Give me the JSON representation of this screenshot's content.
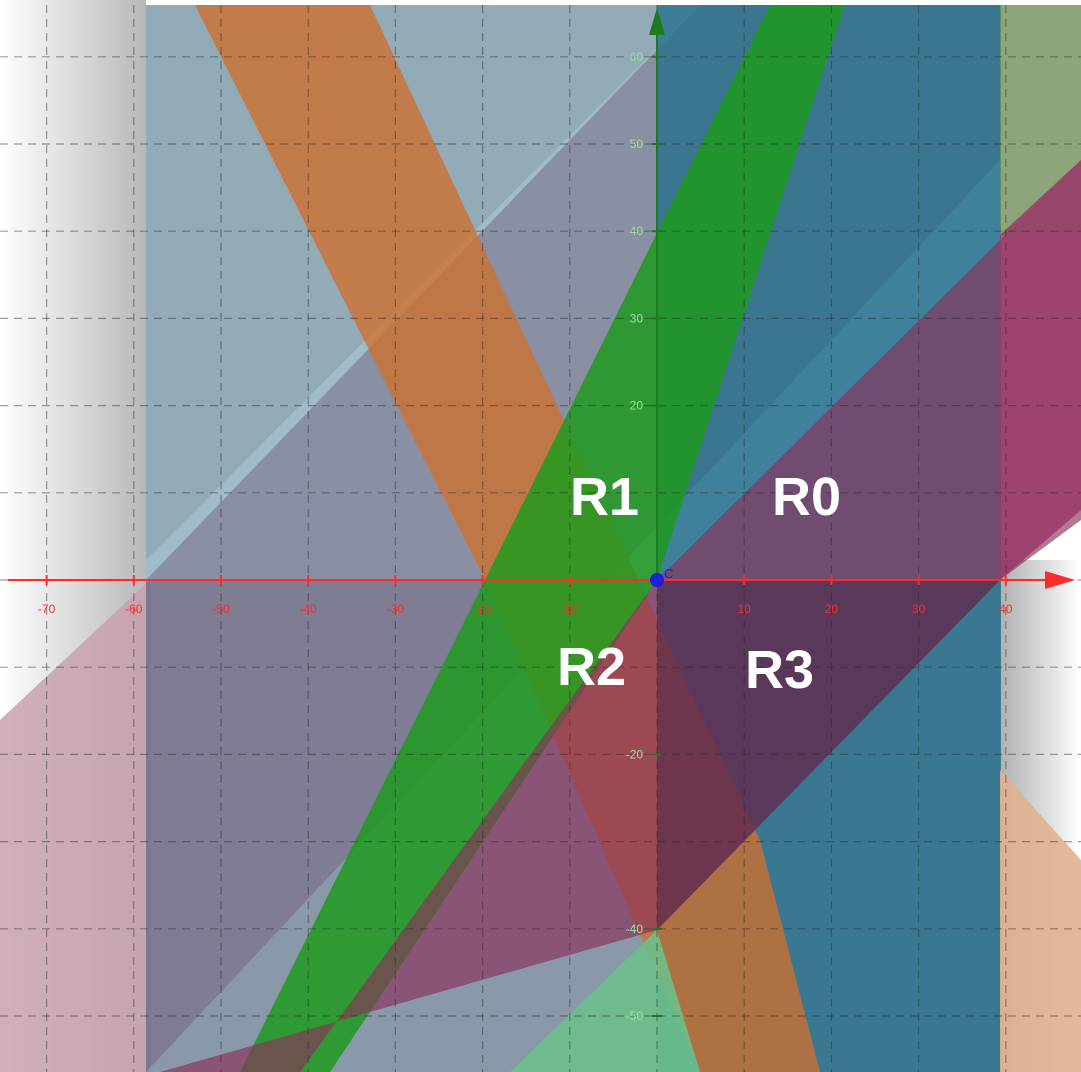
{
  "x_axis": {
    "ticks": [
      {
        "value": -70,
        "label": "-70"
      },
      {
        "value": -60,
        "label": "-60"
      },
      {
        "value": -50,
        "label": "-50"
      },
      {
        "value": -40,
        "label": "-40"
      },
      {
        "value": -30,
        "label": "-30"
      },
      {
        "value": -20,
        "label": "-20"
      },
      {
        "value": -10,
        "label": "-10"
      },
      {
        "value": 10,
        "label": "10"
      },
      {
        "value": 20,
        "label": "20"
      },
      {
        "value": 30,
        "label": "30"
      },
      {
        "value": 40,
        "label": "40"
      }
    ],
    "color": "#ff2a2a"
  },
  "y_axis": {
    "ticks": [
      {
        "value": 60,
        "label": "60"
      },
      {
        "value": 50,
        "label": "50"
      },
      {
        "value": 40,
        "label": "40"
      },
      {
        "value": 30,
        "label": "30"
      },
      {
        "value": 20,
        "label": "20"
      },
      {
        "value": -20,
        "label": "-20"
      },
      {
        "value": -40,
        "label": "-40"
      },
      {
        "value": -50,
        "label": "-50"
      }
    ],
    "color": "#1e7a1e"
  },
  "origin_point": {
    "label": "C",
    "color": "#1f1fd6"
  },
  "regions": {
    "r0": "R0",
    "r1": "R1",
    "r2": "R2",
    "r3": "R3"
  },
  "colors": {
    "grid_dash": "#2a2a2a",
    "green_band": "#1e9a1e",
    "orange_band": "#d0702e",
    "teal_band": "#1f6d89",
    "purple_band": "#8a2f5a",
    "grey_band": "#8aa0b2"
  }
}
